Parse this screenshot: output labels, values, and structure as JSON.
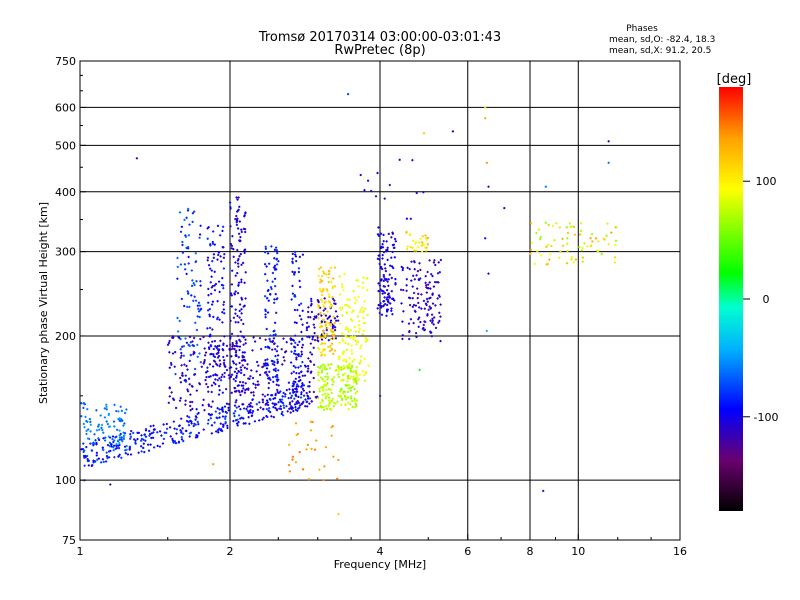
{
  "chart_data": {
    "type": "scatter",
    "title": "Tromsø 20170314 03:00:00-03:01:43",
    "subtitle": "RwPretec (8p)",
    "xlabel": "Frequency [MHz]",
    "ylabel": "Stationary phase Virtual Height [km]",
    "x_scale": "log",
    "y_scale": "log",
    "xlim": [
      1,
      16
    ],
    "ylim": [
      75,
      750
    ],
    "x_ticks": [
      1,
      2,
      4,
      6,
      8,
      10,
      16
    ],
    "x_tick_labels": [
      "1",
      "2",
      "4",
      "6",
      "8",
      "10",
      "16"
    ],
    "y_ticks": [
      75,
      100,
      200,
      300,
      400,
      500,
      600,
      750
    ],
    "y_tick_labels": [
      "75",
      "100",
      "200",
      "300",
      "400",
      "500",
      "600",
      "750"
    ],
    "x_grid": [
      1,
      2,
      4,
      6,
      8,
      10,
      16
    ],
    "y_grid": [
      100,
      200,
      300,
      400,
      500,
      600
    ],
    "grid": true,
    "stats": {
      "heading": "Phases",
      "line_o": "mean, sd,O: -82.4, 18.3",
      "line_x": "mean, sd,X:  91.2, 20.5"
    },
    "colorbar": {
      "label": "[deg]",
      "min": -180,
      "max": 180,
      "ticks": [
        100,
        0,
        -100
      ],
      "tick_labels": [
        "100",
        "0",
        "-100"
      ],
      "colors": [
        "#000000",
        "#6a0070",
        "#0000ff",
        "#00b0ff",
        "#00ffd0",
        "#00ff00",
        "#ffff00",
        "#ffa000",
        "#ff0000"
      ]
    },
    "clusters": [
      {
        "x": [
          1.0,
          2.9
        ],
        "y": [
          112,
          150
        ],
        "phase": [
          -110,
          -70
        ],
        "count": 380,
        "spread": 0.06,
        "trend": true
      },
      {
        "x": [
          1.0,
          1.25
        ],
        "y": [
          115,
          145
        ],
        "phase": [
          -70,
          -45
        ],
        "count": 90,
        "spread": 0.05
      },
      {
        "x": [
          1.5,
          3.0
        ],
        "y": [
          140,
          200
        ],
        "phase": [
          -125,
          -95
        ],
        "count": 330,
        "spread": 0.12
      },
      {
        "x": [
          1.55,
          1.75
        ],
        "y": [
          160,
          370
        ],
        "phase": [
          -95,
          -60
        ],
        "count": 90
      },
      {
        "x": [
          1.8,
          1.95
        ],
        "y": [
          150,
          340
        ],
        "phase": [
          -115,
          -80
        ],
        "count": 110
      },
      {
        "x": [
          2.0,
          2.15
        ],
        "y": [
          150,
          390
        ],
        "phase": [
          -120,
          -90
        ],
        "count": 150
      },
      {
        "x": [
          2.35,
          2.5
        ],
        "y": [
          160,
          310
        ],
        "phase": [
          -100,
          -75
        ],
        "count": 90
      },
      {
        "x": [
          2.65,
          2.8
        ],
        "y": [
          150,
          300
        ],
        "phase": [
          -110,
          -75
        ],
        "count": 80
      },
      {
        "x": [
          2.85,
          3.3
        ],
        "y": [
          195,
          240
        ],
        "phase": [
          -120,
          -95
        ],
        "count": 70
      },
      {
        "x": [
          3.0,
          3.6
        ],
        "y": [
          140,
          175
        ],
        "phase": [
          60,
          85
        ],
        "count": 180
      },
      {
        "x": [
          3.0,
          3.25
        ],
        "y": [
          180,
          280
        ],
        "phase": [
          100,
          130
        ],
        "count": 110
      },
      {
        "x": [
          3.3,
          3.8
        ],
        "y": [
          160,
          270
        ],
        "phase": [
          80,
          100
        ],
        "count": 130
      },
      {
        "x": [
          3.95,
          4.3
        ],
        "y": [
          220,
          330
        ],
        "phase": [
          -115,
          -90
        ],
        "count": 110
      },
      {
        "x": [
          4.4,
          5.3
        ],
        "y": [
          195,
          290
        ],
        "phase": [
          -125,
          -100
        ],
        "count": 130
      },
      {
        "x": [
          4.5,
          5.0
        ],
        "y": [
          300,
          330
        ],
        "phase": [
          80,
          130
        ],
        "count": 30
      },
      {
        "x": [
          8.0,
          12.0
        ],
        "y": [
          280,
          345
        ],
        "phase": [
          60,
          140
        ],
        "count": 75
      },
      {
        "x": [
          2.55,
          3.3
        ],
        "y": [
          100,
          135
        ],
        "phase": [
          125,
          150
        ],
        "count": 30
      },
      {
        "x": [
          3.5,
          4.9
        ],
        "y": [
          330,
          470
        ],
        "phase": [
          -120,
          -90
        ],
        "count": 15
      }
    ],
    "outliers": [
      {
        "x": 1.3,
        "y": 470,
        "phase": -110
      },
      {
        "x": 3.45,
        "y": 640,
        "phase": -80
      },
      {
        "x": 4.9,
        "y": 530,
        "phase": 120
      },
      {
        "x": 5.6,
        "y": 535,
        "phase": -100
      },
      {
        "x": 6.5,
        "y": 600,
        "phase": 110
      },
      {
        "x": 6.5,
        "y": 570,
        "phase": 130
      },
      {
        "x": 6.55,
        "y": 460,
        "phase": 140
      },
      {
        "x": 6.6,
        "y": 410,
        "phase": -110
      },
      {
        "x": 6.5,
        "y": 320,
        "phase": -90
      },
      {
        "x": 6.6,
        "y": 270,
        "phase": -110
      },
      {
        "x": 6.55,
        "y": 205,
        "phase": -40
      },
      {
        "x": 7.1,
        "y": 370,
        "phase": -100
      },
      {
        "x": 8.6,
        "y": 410,
        "phase": -60
      },
      {
        "x": 8.5,
        "y": 95,
        "phase": -120
      },
      {
        "x": 11.5,
        "y": 510,
        "phase": -110
      },
      {
        "x": 11.5,
        "y": 460,
        "phase": -60
      },
      {
        "x": 1.85,
        "y": 108,
        "phase": 140
      },
      {
        "x": 3.3,
        "y": 85,
        "phase": 120
      },
      {
        "x": 1.15,
        "y": 98,
        "phase": -120
      },
      {
        "x": 1.02,
        "y": 100,
        "phase": -60
      },
      {
        "x": 4.0,
        "y": 150,
        "phase": -110
      },
      {
        "x": 4.8,
        "y": 170,
        "phase": 20
      }
    ]
  }
}
